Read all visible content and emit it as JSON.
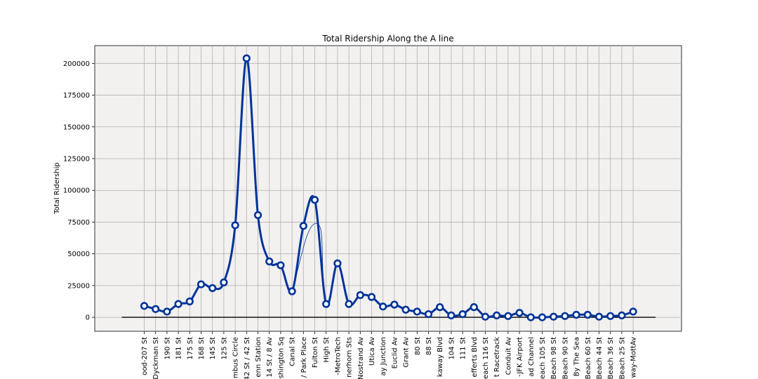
{
  "chart_data": {
    "type": "line",
    "title": "Total Ridership Along the A line",
    "xlabel": "",
    "ylabel": "Total Ridership",
    "ylim": [
      -11000,
      214000
    ],
    "yticks": [
      0,
      25000,
      50000,
      75000,
      100000,
      125000,
      150000,
      175000,
      200000
    ],
    "grid": true,
    "colors": {
      "line": "#003399",
      "marker_face": "#ffffff",
      "background": "#f2f1f0",
      "grid": "#b0b0b0"
    },
    "categories": [
      "ood-207 St",
      "Dyckman St",
      "190 St",
      "181 St",
      "175 St",
      "168 St",
      "145 St",
      "125 St",
      "mbus Circle",
      "42 St / 42 St",
      "enn Station",
      "14 St / 8 Av",
      "shington Sq",
      "Canal St",
      "/ Park Place",
      "Fulton St",
      "High St",
      "-MetroTech",
      "nerhorn Sts",
      "Nostrand Av",
      "Utica Av",
      "ay Junction",
      "Euclid Av",
      "Grant Av",
      "80 St",
      "88 St",
      "kaway Blvd",
      "104 St",
      "111 St",
      "efferts Blvd",
      "each 116 St",
      "t Racetrack",
      "Conduit Av",
      "-JFK Airport",
      "ad Channel",
      "each 105 St",
      "Beach 98 St",
      "Beach 90 St",
      "By The Sea",
      "Beach 60 St",
      "Beach 44 St",
      "Beach 36 St",
      "Beach 25 St",
      "way-MottAv"
    ],
    "series": [
      {
        "values": [
          9000,
          6500,
          4500,
          10500,
          12500,
          26000,
          23000,
          27500,
          72500,
          204000,
          80500,
          44000,
          41000,
          20500,
          72000,
          92500,
          10500,
          42500,
          10500,
          17500,
          16000,
          8500,
          10000,
          6000,
          4500,
          2500,
          8000,
          1500,
          2500,
          8000,
          500,
          1500,
          1000,
          3500,
          0,
          0,
          500,
          1000,
          2000,
          2000,
          500,
          1000,
          1500,
          4500
        ]
      }
    ],
    "secondary_curve": {
      "x_start": 13,
      "x_end": 16,
      "peak": 74000
    }
  }
}
